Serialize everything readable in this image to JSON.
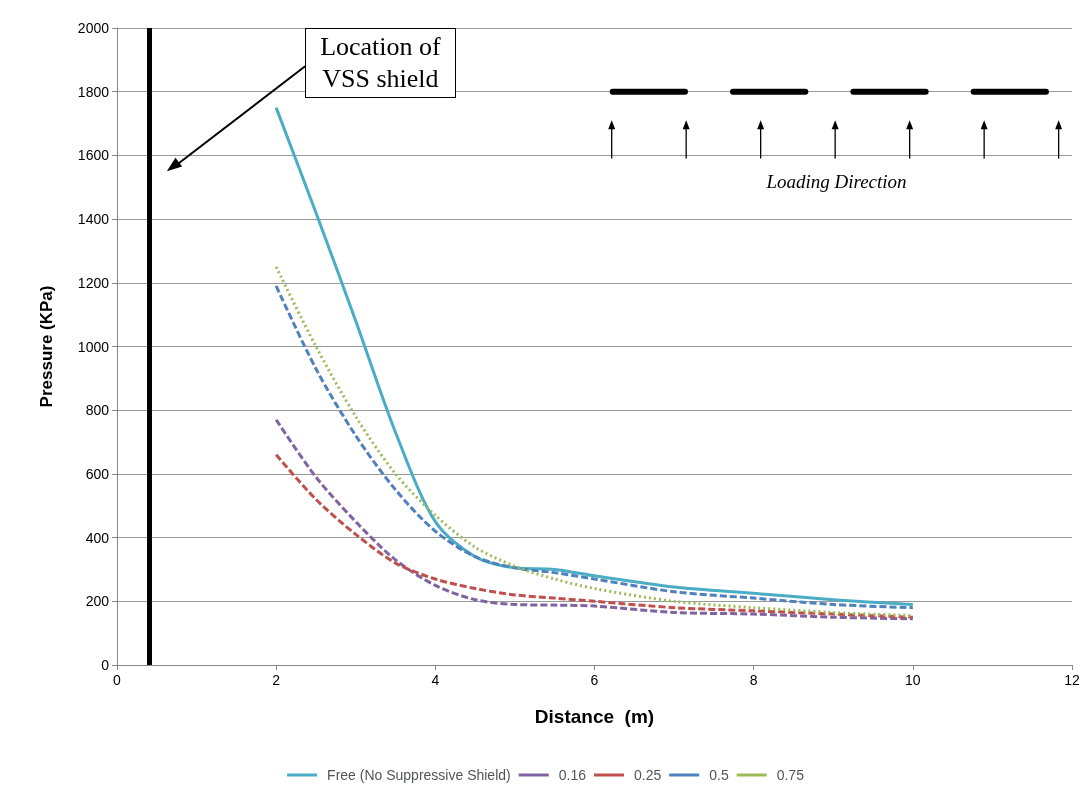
{
  "chart_data": {
    "type": "line",
    "xlabel": "Distance  (m)",
    "ylabel": "Pressure (KPa)",
    "xlim": [
      0,
      12
    ],
    "xticks": [
      0,
      2,
      4,
      6,
      8,
      10,
      12
    ],
    "ylim": [
      0,
      2000
    ],
    "yticks": [
      0,
      200,
      400,
      600,
      800,
      1000,
      1200,
      1400,
      1600,
      1800,
      2000
    ],
    "x": [
      2,
      2.5,
      3,
      3.5,
      4,
      4.5,
      5,
      5.5,
      6,
      7,
      8,
      9,
      10
    ],
    "series": [
      {
        "name": "Free (No Suppressive Shield)",
        "color": "#4bacc6",
        "line_style": "solid",
        "values": [
          1750,
          1420,
          1080,
          730,
          450,
          340,
          305,
          300,
          280,
          245,
          225,
          205,
          190
        ]
      },
      {
        "name": "0.16",
        "color": "#8064a2",
        "line_style": "dashed",
        "values": [
          770,
          590,
          450,
          330,
          250,
          205,
          190,
          188,
          185,
          165,
          160,
          150,
          145
        ]
      },
      {
        "name": "0.25",
        "color": "#c0504d",
        "line_style": "dashed",
        "values": [
          660,
          520,
          410,
          320,
          270,
          240,
          220,
          210,
          200,
          180,
          170,
          160,
          150
        ]
      },
      {
        "name": "0.5",
        "color": "#4f81bd",
        "line_style": "dashed",
        "values": [
          1190,
          930,
          720,
          550,
          420,
          340,
          305,
          290,
          270,
          230,
          210,
          190,
          180
        ]
      },
      {
        "name": "0.75",
        "color": "#9bbb59",
        "line_style": "dotted",
        "values": [
          1250,
          1000,
          780,
          600,
          470,
          370,
          310,
          270,
          240,
          200,
          180,
          165,
          155
        ]
      }
    ],
    "ref_lines": [
      {
        "axis": "x",
        "value": 0.4,
        "color": "#000000",
        "line_style": "solid"
      }
    ],
    "annotations": [
      "Location of\nVSS shield",
      "Loading Direction"
    ],
    "grid": "y",
    "legend": "bottom",
    "marker": "none"
  }
}
